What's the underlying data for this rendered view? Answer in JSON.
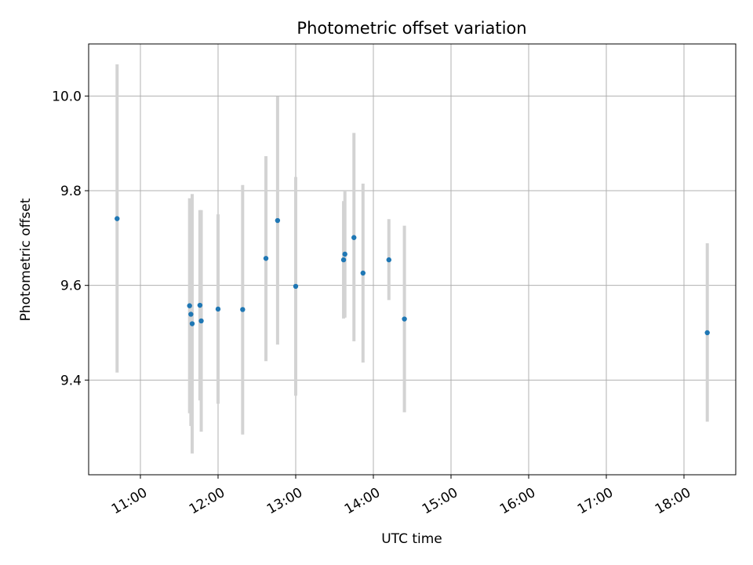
{
  "chart_data": {
    "type": "scatter",
    "title": "Photometric offset variation",
    "xlabel": "UTC time",
    "ylabel": "Photometric offset",
    "x_unit": "hours UTC",
    "xlim": [
      "10:20",
      "18:40"
    ],
    "ylim": [
      9.2,
      10.11
    ],
    "x_ticks": [
      "11:00",
      "12:00",
      "13:00",
      "14:00",
      "15:00",
      "16:00",
      "17:00",
      "18:00"
    ],
    "y_ticks": [
      "9.4",
      "9.6",
      "9.8",
      "10.0"
    ],
    "grid": true,
    "legend": "none",
    "marker_color": "#1f77b4",
    "errorbar_color": "#d3d3d3",
    "points": [
      {
        "x": "10:42",
        "y": 9.741,
        "ylo": 9.416,
        "yhi": 10.067
      },
      {
        "x": "11:38",
        "y": 9.557,
        "ylo": 9.33,
        "yhi": 9.784
      },
      {
        "x": "11:39",
        "y": 9.539,
        "ylo": 9.303,
        "yhi": 9.775
      },
      {
        "x": "11:40",
        "y": 9.519,
        "ylo": 9.245,
        "yhi": 9.793
      },
      {
        "x": "11:46",
        "y": 9.558,
        "ylo": 9.357,
        "yhi": 9.759
      },
      {
        "x": "11:47",
        "y": 9.525,
        "ylo": 9.291,
        "yhi": 9.759
      },
      {
        "x": "12:00",
        "y": 9.55,
        "ylo": 9.35,
        "yhi": 9.75
      },
      {
        "x": "12:19",
        "y": 9.549,
        "ylo": 9.285,
        "yhi": 9.812
      },
      {
        "x": "12:37",
        "y": 9.657,
        "ylo": 9.44,
        "yhi": 9.873
      },
      {
        "x": "12:46",
        "y": 9.737,
        "ylo": 9.475,
        "yhi": 9.999
      },
      {
        "x": "13:00",
        "y": 9.598,
        "ylo": 9.367,
        "yhi": 9.829
      },
      {
        "x": "13:37",
        "y": 9.654,
        "ylo": 9.53,
        "yhi": 9.778
      },
      {
        "x": "13:38",
        "y": 9.666,
        "ylo": 9.532,
        "yhi": 9.8
      },
      {
        "x": "13:45",
        "y": 9.701,
        "ylo": 9.482,
        "yhi": 9.922
      },
      {
        "x": "13:52",
        "y": 9.626,
        "ylo": 9.437,
        "yhi": 9.815
      },
      {
        "x": "14:12",
        "y": 9.654,
        "ylo": 9.569,
        "yhi": 9.74
      },
      {
        "x": "14:24",
        "y": 9.529,
        "ylo": 9.332,
        "yhi": 9.726
      },
      {
        "x": "18:18",
        "y": 9.5,
        "ylo": 9.312,
        "yhi": 9.689
      }
    ]
  }
}
